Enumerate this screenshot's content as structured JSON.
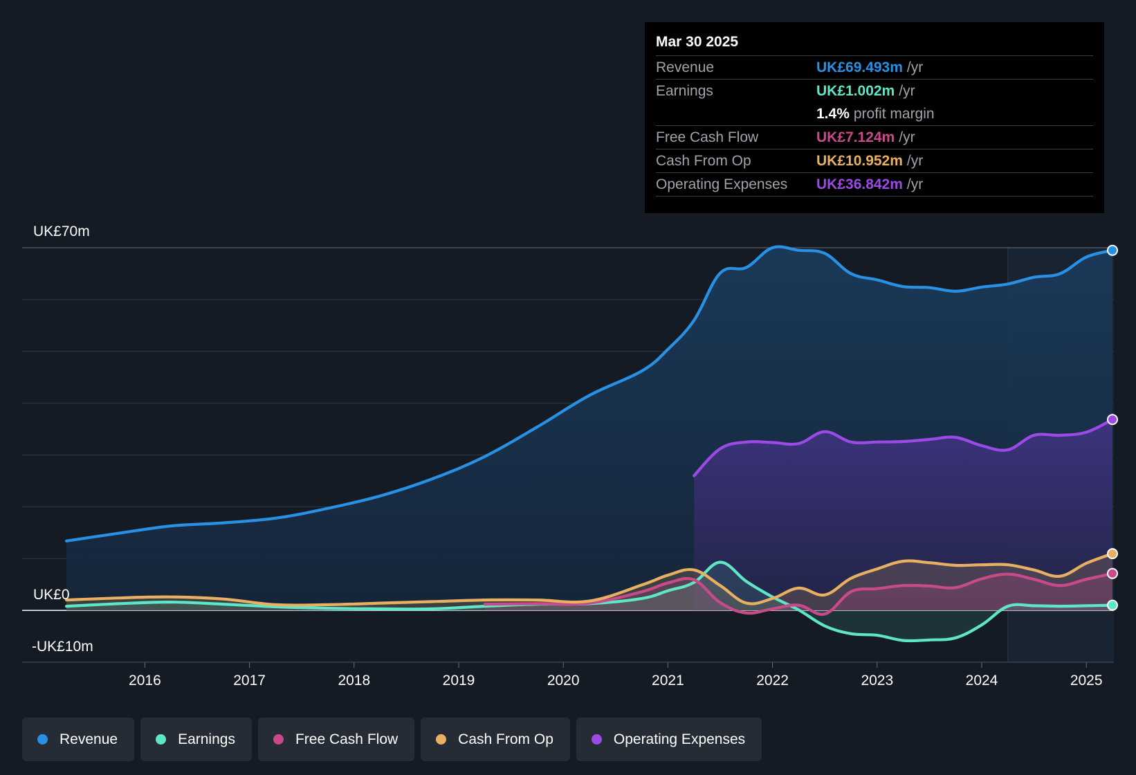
{
  "chart_data": {
    "type": "area",
    "title": "",
    "y_label_top": "UK£70m",
    "y_label_zero": "UK£0",
    "y_label_bottom": "-UK£10m",
    "ylim": [
      -10,
      70
    ],
    "xlim": [
      2015.25,
      2025.25
    ],
    "x_ticks": [
      "2016",
      "2017",
      "2018",
      "2019",
      "2020",
      "2021",
      "2022",
      "2023",
      "2024",
      "2025"
    ],
    "x_tick_values": [
      2016,
      2017,
      2018,
      2019,
      2020,
      2021,
      2022,
      2023,
      2024,
      2025
    ],
    "forecast_start": 2024.25,
    "series": [
      {
        "name": "Revenue",
        "color": "#2891e4",
        "x": [
          2015.25,
          2015.75,
          2016.25,
          2016.75,
          2017.25,
          2017.75,
          2018.25,
          2018.75,
          2019.25,
          2019.75,
          2020.25,
          2020.75,
          2021.0,
          2021.25,
          2021.5,
          2021.75,
          2022.0,
          2022.25,
          2022.5,
          2022.75,
          2023.0,
          2023.25,
          2023.5,
          2023.75,
          2024.0,
          2024.25,
          2024.5,
          2024.75,
          2025.0,
          2025.25
        ],
        "values": [
          13.4,
          14.9,
          16.3,
          16.9,
          17.8,
          19.7,
          22.1,
          25.4,
          29.7,
          35.4,
          41.5,
          46.2,
          50.4,
          56.0,
          65.1,
          66.2,
          70.0,
          69.5,
          68.9,
          65.0,
          63.8,
          62.5,
          62.3,
          61.6,
          62.4,
          63.0,
          64.3,
          65.0,
          68.2,
          69.493
        ]
      },
      {
        "name": "Earnings",
        "color": "#5ee6c7",
        "x": [
          2015.25,
          2015.75,
          2016.25,
          2016.75,
          2017.25,
          2017.75,
          2018.25,
          2018.75,
          2019.25,
          2019.75,
          2020.25,
          2020.75,
          2021.0,
          2021.25,
          2021.5,
          2021.75,
          2022.0,
          2022.25,
          2022.5,
          2022.75,
          2023.0,
          2023.25,
          2023.5,
          2023.75,
          2024.0,
          2024.25,
          2024.5,
          2024.75,
          2025.0,
          2025.25
        ],
        "values": [
          0.8,
          1.3,
          1.6,
          1.2,
          0.7,
          0.4,
          0.3,
          0.3,
          0.8,
          1.2,
          1.3,
          2.3,
          3.8,
          5.4,
          9.3,
          5.6,
          2.6,
          0.1,
          -3.0,
          -4.5,
          -4.8,
          -5.8,
          -5.7,
          -5.3,
          -2.8,
          0.8,
          0.9,
          0.8,
          0.9,
          1.002
        ]
      },
      {
        "name": "Free Cash Flow",
        "color": "#c94a8b",
        "x": [
          2019.25,
          2019.75,
          2020.25,
          2020.75,
          2021.0,
          2021.25,
          2021.5,
          2021.75,
          2022.0,
          2022.25,
          2022.5,
          2022.75,
          2023.0,
          2023.25,
          2023.5,
          2023.75,
          2024.0,
          2024.25,
          2024.5,
          2024.75,
          2025.0,
          2025.25
        ],
        "values": [
          1.2,
          1.3,
          1.4,
          3.6,
          5.3,
          5.9,
          1.5,
          -0.5,
          0.3,
          1.0,
          -0.7,
          3.6,
          4.2,
          4.8,
          4.7,
          4.4,
          6.1,
          7.0,
          6.0,
          4.8,
          6.0,
          7.124
        ]
      },
      {
        "name": "Cash From Op",
        "color": "#e9b062",
        "x": [
          2015.25,
          2015.75,
          2016.25,
          2016.75,
          2017.25,
          2017.75,
          2018.25,
          2018.75,
          2019.25,
          2019.75,
          2020.25,
          2020.75,
          2021.0,
          2021.25,
          2021.5,
          2021.75,
          2022.0,
          2022.25,
          2022.5,
          2022.75,
          2023.0,
          2023.25,
          2023.5,
          2023.75,
          2024.0,
          2024.25,
          2024.5,
          2024.75,
          2025.0,
          2025.25
        ],
        "values": [
          2.0,
          2.4,
          2.6,
          2.2,
          1.1,
          1.1,
          1.4,
          1.7,
          2.0,
          2.0,
          1.8,
          4.9,
          6.8,
          7.8,
          4.8,
          1.4,
          2.3,
          4.3,
          3.0,
          6.2,
          8.0,
          9.5,
          9.2,
          8.7,
          8.8,
          8.8,
          7.8,
          6.6,
          9.1,
          10.952
        ]
      },
      {
        "name": "Operating Expenses",
        "color": "#9b4ae6",
        "x": [
          2021.25,
          2021.5,
          2021.75,
          2022.0,
          2022.25,
          2022.5,
          2022.75,
          2023.0,
          2023.25,
          2023.5,
          2023.75,
          2024.0,
          2024.25,
          2024.5,
          2024.75,
          2025.0,
          2025.25
        ],
        "values": [
          26.0,
          31.2,
          32.5,
          32.4,
          32.2,
          34.5,
          32.5,
          32.5,
          32.6,
          33.0,
          33.4,
          31.8,
          31.0,
          33.8,
          33.8,
          34.4,
          36.842
        ]
      }
    ]
  },
  "tooltip": {
    "date": "Mar 30 2025",
    "revenue_label": "Revenue",
    "revenue_value": "UK£69.493m",
    "earnings_label": "Earnings",
    "earnings_value": "UK£1.002m",
    "margin_value": "1.4%",
    "margin_text": "profit margin",
    "fcf_label": "Free Cash Flow",
    "fcf_value": "UK£7.124m",
    "cfo_label": "Cash From Op",
    "cfo_value": "UK£10.952m",
    "opex_label": "Operating Expenses",
    "opex_value": "UK£36.842m",
    "unit": "/yr"
  },
  "legend": [
    {
      "label": "Revenue",
      "color": "#2891e4"
    },
    {
      "label": "Earnings",
      "color": "#5ee6c7"
    },
    {
      "label": "Free Cash Flow",
      "color": "#c94a8b"
    },
    {
      "label": "Cash From Op",
      "color": "#e9b062"
    },
    {
      "label": "Operating Expenses",
      "color": "#9b4ae6"
    }
  ]
}
